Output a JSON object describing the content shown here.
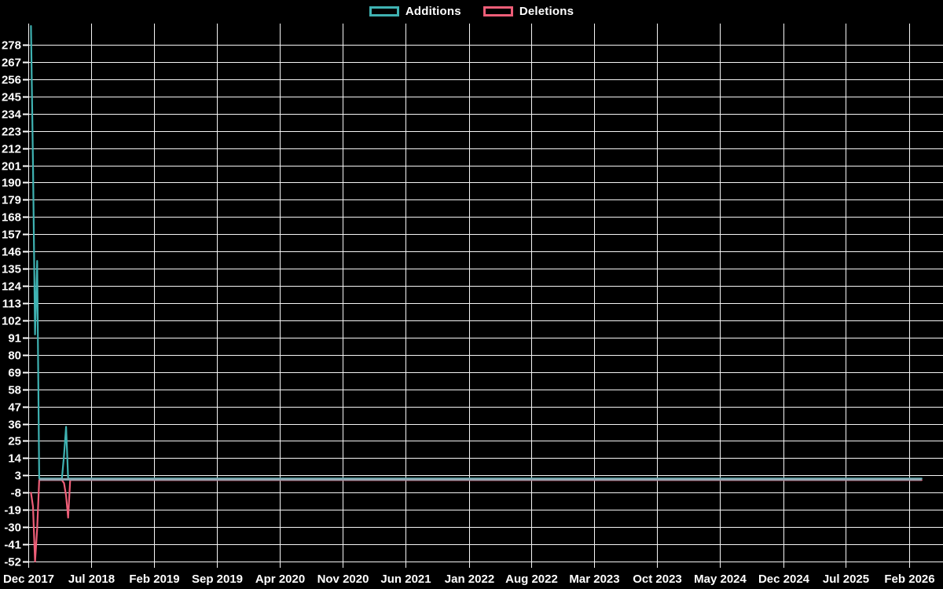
{
  "page": {
    "background": "#000000",
    "grid_color": "#f5f5f5",
    "text_color": "#ffffff"
  },
  "legend": {
    "items": [
      {
        "label": "Additions",
        "color": "#3fb2b2"
      },
      {
        "label": "Deletions",
        "color": "#ee5e78"
      }
    ]
  },
  "chart_data": {
    "type": "line",
    "title": "",
    "xlabel": "",
    "ylabel": "",
    "grid": true,
    "background": "#000000",
    "legend_position": "top-center",
    "y_axis": {
      "min": -52,
      "max": 278,
      "step": 11,
      "plot_top_value": 291,
      "ticks": [
        278,
        267,
        256,
        245,
        234,
        223,
        212,
        201,
        190,
        179,
        168,
        157,
        146,
        135,
        124,
        113,
        102,
        91,
        80,
        69,
        58,
        47,
        36,
        25,
        14,
        3,
        -8,
        -19,
        -30,
        -41,
        -52
      ]
    },
    "x_axis": {
      "start": "2017-12-01",
      "end": "2026-02-01",
      "ticks": [
        {
          "label": "Dec 2017",
          "date": "2017-12-01"
        },
        {
          "label": "Jul 2018",
          "date": "2018-07-01"
        },
        {
          "label": "Feb 2019",
          "date": "2019-02-01"
        },
        {
          "label": "Sep 2019",
          "date": "2019-09-01"
        },
        {
          "label": "Apr 2020",
          "date": "2020-04-01"
        },
        {
          "label": "Nov 2020",
          "date": "2020-11-01"
        },
        {
          "label": "Jun 2021",
          "date": "2021-06-01"
        },
        {
          "label": "Jan 2022",
          "date": "2022-01-01"
        },
        {
          "label": "Aug 2022",
          "date": "2022-08-01"
        },
        {
          "label": "Mar 2023",
          "date": "2023-03-01"
        },
        {
          "label": "Oct 2023",
          "date": "2023-10-01"
        },
        {
          "label": "May 2024",
          "date": "2024-05-01"
        },
        {
          "label": "Dec 2024",
          "date": "2024-12-01"
        },
        {
          "label": "Jul 2025",
          "date": "2025-07-01"
        },
        {
          "label": "Feb 2026",
          "date": "2026-02-01"
        }
      ]
    },
    "series": [
      {
        "name": "Additions",
        "color": "#3fb2b2",
        "points": [
          [
            "2017-12-10",
            290
          ],
          [
            "2017-12-17",
            201
          ],
          [
            "2017-12-24",
            93
          ],
          [
            "2017-12-31",
            140
          ],
          [
            "2018-01-07",
            1
          ],
          [
            "2018-03-25",
            1
          ],
          [
            "2018-04-01",
            16
          ],
          [
            "2018-04-08",
            34
          ],
          [
            "2018-04-15",
            1
          ],
          [
            "2026-03-15",
            1
          ]
        ]
      },
      {
        "name": "Deletions",
        "color": "#ee5e78",
        "points": [
          [
            "2017-12-10",
            -8
          ],
          [
            "2017-12-17",
            -17
          ],
          [
            "2017-12-24",
            -52
          ],
          [
            "2017-12-31",
            -31
          ],
          [
            "2018-01-07",
            0
          ],
          [
            "2018-03-25",
            0
          ],
          [
            "2018-04-01",
            -2
          ],
          [
            "2018-04-08",
            -10
          ],
          [
            "2018-04-15",
            -24
          ],
          [
            "2018-04-22",
            0
          ],
          [
            "2026-03-15",
            0
          ]
        ]
      }
    ],
    "baseline_overlay": {
      "note": "merged additions+deletions zero line rendered as muted teal-gray",
      "color": "#8ca9b4",
      "value": 0.5,
      "from": "2018-01-07",
      "to": "2026-03-15"
    }
  }
}
